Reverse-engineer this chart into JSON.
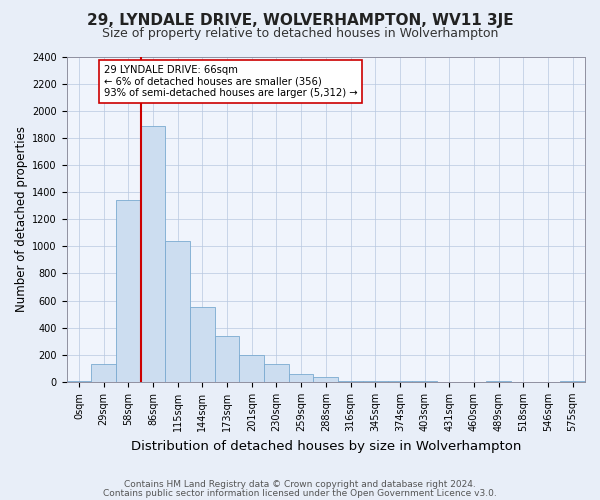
{
  "title": "29, LYNDALE DRIVE, WOLVERHAMPTON, WV11 3JE",
  "subtitle": "Size of property relative to detached houses in Wolverhampton",
  "xlabel": "Distribution of detached houses by size in Wolverhampton",
  "ylabel": "Number of detached properties",
  "footnote1": "Contains HM Land Registry data © Crown copyright and database right 2024.",
  "footnote2": "Contains public sector information licensed under the Open Government Licence v3.0.",
  "categories": [
    "0sqm",
    "29sqm",
    "58sqm",
    "86sqm",
    "115sqm",
    "144sqm",
    "173sqm",
    "201sqm",
    "230sqm",
    "259sqm",
    "288sqm",
    "316sqm",
    "345sqm",
    "374sqm",
    "403sqm",
    "431sqm",
    "460sqm",
    "489sqm",
    "518sqm",
    "546sqm",
    "575sqm"
  ],
  "values": [
    10,
    130,
    1340,
    1890,
    1040,
    550,
    340,
    200,
    130,
    55,
    35,
    10,
    10,
    5,
    5,
    0,
    0,
    5,
    0,
    0,
    10
  ],
  "bar_color": "#ccddf0",
  "bar_edge_color": "#7aaad0",
  "vline_x": 2.5,
  "vline_color": "#cc0000",
  "annotation_text": "29 LYNDALE DRIVE: 66sqm\n← 6% of detached houses are smaller (356)\n93% of semi-detached houses are larger (5,312) →",
  "annotation_box_color": "#ffffff",
  "annotation_box_edge": "#cc0000",
  "ylim": [
    0,
    2400
  ],
  "yticks": [
    0,
    200,
    400,
    600,
    800,
    1000,
    1200,
    1400,
    1600,
    1800,
    2000,
    2200,
    2400
  ],
  "bg_color": "#e8eef8",
  "plot_bg_color": "#f0f4fc",
  "title_fontsize": 11,
  "subtitle_fontsize": 9,
  "xlabel_fontsize": 9.5,
  "ylabel_fontsize": 8.5,
  "tick_fontsize": 7,
  "footnote_fontsize": 6.5
}
